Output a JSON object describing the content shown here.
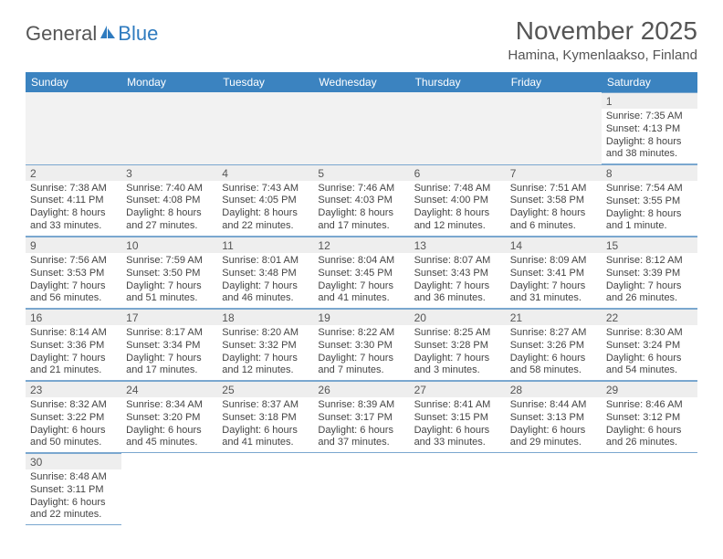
{
  "brand": {
    "part1": "General",
    "part2": "Blue"
  },
  "title": "November 2025",
  "location": "Hamina, Kymenlaakso, Finland",
  "colors": {
    "header_bg": "#3b83c0",
    "header_fg": "#ffffff",
    "daynum_bg": "#eeeeee",
    "cell_border": "#7aa7cf",
    "logo_gray": "#565656",
    "logo_blue": "#2f7bbf",
    "title_color": "#555555"
  },
  "weekdays": [
    "Sunday",
    "Monday",
    "Tuesday",
    "Wednesday",
    "Thursday",
    "Friday",
    "Saturday"
  ],
  "weeks": [
    [
      null,
      null,
      null,
      null,
      null,
      null,
      {
        "n": "1",
        "sr": "Sunrise: 7:35 AM",
        "ss": "Sunset: 4:13 PM",
        "dl1": "Daylight: 8 hours",
        "dl2": "and 38 minutes."
      }
    ],
    [
      {
        "n": "2",
        "sr": "Sunrise: 7:38 AM",
        "ss": "Sunset: 4:11 PM",
        "dl1": "Daylight: 8 hours",
        "dl2": "and 33 minutes."
      },
      {
        "n": "3",
        "sr": "Sunrise: 7:40 AM",
        "ss": "Sunset: 4:08 PM",
        "dl1": "Daylight: 8 hours",
        "dl2": "and 27 minutes."
      },
      {
        "n": "4",
        "sr": "Sunrise: 7:43 AM",
        "ss": "Sunset: 4:05 PM",
        "dl1": "Daylight: 8 hours",
        "dl2": "and 22 minutes."
      },
      {
        "n": "5",
        "sr": "Sunrise: 7:46 AM",
        "ss": "Sunset: 4:03 PM",
        "dl1": "Daylight: 8 hours",
        "dl2": "and 17 minutes."
      },
      {
        "n": "6",
        "sr": "Sunrise: 7:48 AM",
        "ss": "Sunset: 4:00 PM",
        "dl1": "Daylight: 8 hours",
        "dl2": "and 12 minutes."
      },
      {
        "n": "7",
        "sr": "Sunrise: 7:51 AM",
        "ss": "Sunset: 3:58 PM",
        "dl1": "Daylight: 8 hours",
        "dl2": "and 6 minutes."
      },
      {
        "n": "8",
        "sr": "Sunrise: 7:54 AM",
        "ss": "Sunset: 3:55 PM",
        "dl1": "Daylight: 8 hours",
        "dl2": "and 1 minute."
      }
    ],
    [
      {
        "n": "9",
        "sr": "Sunrise: 7:56 AM",
        "ss": "Sunset: 3:53 PM",
        "dl1": "Daylight: 7 hours",
        "dl2": "and 56 minutes."
      },
      {
        "n": "10",
        "sr": "Sunrise: 7:59 AM",
        "ss": "Sunset: 3:50 PM",
        "dl1": "Daylight: 7 hours",
        "dl2": "and 51 minutes."
      },
      {
        "n": "11",
        "sr": "Sunrise: 8:01 AM",
        "ss": "Sunset: 3:48 PM",
        "dl1": "Daylight: 7 hours",
        "dl2": "and 46 minutes."
      },
      {
        "n": "12",
        "sr": "Sunrise: 8:04 AM",
        "ss": "Sunset: 3:45 PM",
        "dl1": "Daylight: 7 hours",
        "dl2": "and 41 minutes."
      },
      {
        "n": "13",
        "sr": "Sunrise: 8:07 AM",
        "ss": "Sunset: 3:43 PM",
        "dl1": "Daylight: 7 hours",
        "dl2": "and 36 minutes."
      },
      {
        "n": "14",
        "sr": "Sunrise: 8:09 AM",
        "ss": "Sunset: 3:41 PM",
        "dl1": "Daylight: 7 hours",
        "dl2": "and 31 minutes."
      },
      {
        "n": "15",
        "sr": "Sunrise: 8:12 AM",
        "ss": "Sunset: 3:39 PM",
        "dl1": "Daylight: 7 hours",
        "dl2": "and 26 minutes."
      }
    ],
    [
      {
        "n": "16",
        "sr": "Sunrise: 8:14 AM",
        "ss": "Sunset: 3:36 PM",
        "dl1": "Daylight: 7 hours",
        "dl2": "and 21 minutes."
      },
      {
        "n": "17",
        "sr": "Sunrise: 8:17 AM",
        "ss": "Sunset: 3:34 PM",
        "dl1": "Daylight: 7 hours",
        "dl2": "and 17 minutes."
      },
      {
        "n": "18",
        "sr": "Sunrise: 8:20 AM",
        "ss": "Sunset: 3:32 PM",
        "dl1": "Daylight: 7 hours",
        "dl2": "and 12 minutes."
      },
      {
        "n": "19",
        "sr": "Sunrise: 8:22 AM",
        "ss": "Sunset: 3:30 PM",
        "dl1": "Daylight: 7 hours",
        "dl2": "and 7 minutes."
      },
      {
        "n": "20",
        "sr": "Sunrise: 8:25 AM",
        "ss": "Sunset: 3:28 PM",
        "dl1": "Daylight: 7 hours",
        "dl2": "and 3 minutes."
      },
      {
        "n": "21",
        "sr": "Sunrise: 8:27 AM",
        "ss": "Sunset: 3:26 PM",
        "dl1": "Daylight: 6 hours",
        "dl2": "and 58 minutes."
      },
      {
        "n": "22",
        "sr": "Sunrise: 8:30 AM",
        "ss": "Sunset: 3:24 PM",
        "dl1": "Daylight: 6 hours",
        "dl2": "and 54 minutes."
      }
    ],
    [
      {
        "n": "23",
        "sr": "Sunrise: 8:32 AM",
        "ss": "Sunset: 3:22 PM",
        "dl1": "Daylight: 6 hours",
        "dl2": "and 50 minutes."
      },
      {
        "n": "24",
        "sr": "Sunrise: 8:34 AM",
        "ss": "Sunset: 3:20 PM",
        "dl1": "Daylight: 6 hours",
        "dl2": "and 45 minutes."
      },
      {
        "n": "25",
        "sr": "Sunrise: 8:37 AM",
        "ss": "Sunset: 3:18 PM",
        "dl1": "Daylight: 6 hours",
        "dl2": "and 41 minutes."
      },
      {
        "n": "26",
        "sr": "Sunrise: 8:39 AM",
        "ss": "Sunset: 3:17 PM",
        "dl1": "Daylight: 6 hours",
        "dl2": "and 37 minutes."
      },
      {
        "n": "27",
        "sr": "Sunrise: 8:41 AM",
        "ss": "Sunset: 3:15 PM",
        "dl1": "Daylight: 6 hours",
        "dl2": "and 33 minutes."
      },
      {
        "n": "28",
        "sr": "Sunrise: 8:44 AM",
        "ss": "Sunset: 3:13 PM",
        "dl1": "Daylight: 6 hours",
        "dl2": "and 29 minutes."
      },
      {
        "n": "29",
        "sr": "Sunrise: 8:46 AM",
        "ss": "Sunset: 3:12 PM",
        "dl1": "Daylight: 6 hours",
        "dl2": "and 26 minutes."
      }
    ],
    [
      {
        "n": "30",
        "sr": "Sunrise: 8:48 AM",
        "ss": "Sunset: 3:11 PM",
        "dl1": "Daylight: 6 hours",
        "dl2": "and 22 minutes."
      },
      null,
      null,
      null,
      null,
      null,
      null
    ]
  ]
}
